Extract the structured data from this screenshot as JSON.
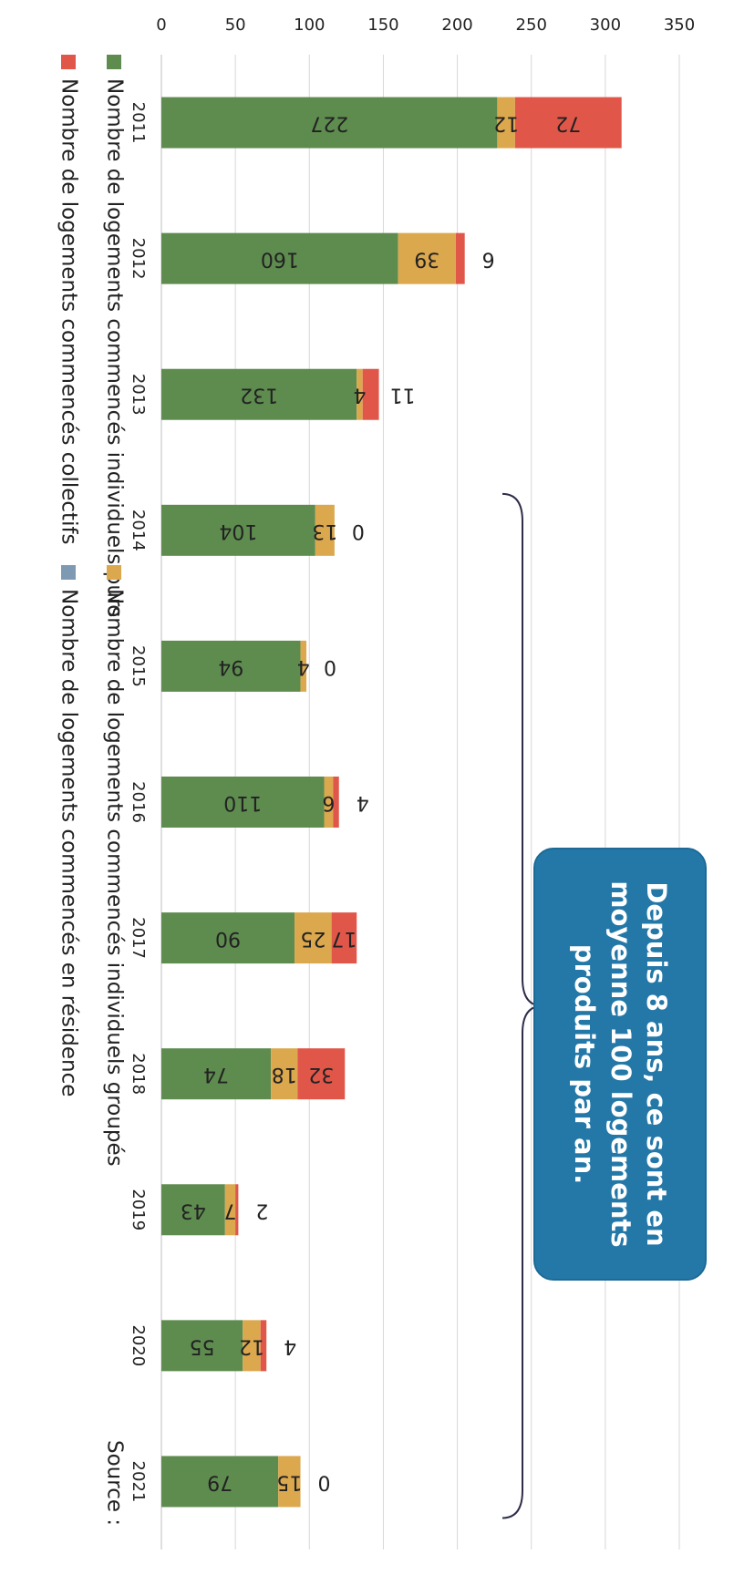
{
  "chart_data": {
    "type": "bar",
    "stacked": true,
    "categories": [
      "2011",
      "2012",
      "2013",
      "2014",
      "2015",
      "2016",
      "2017",
      "2018",
      "2019",
      "2020",
      "2021"
    ],
    "series": [
      {
        "name": "Nombre de logements commencés individuels purs",
        "color": "#5e8c4f",
        "values": [
          227,
          160,
          132,
          104,
          94,
          110,
          90,
          74,
          43,
          55,
          79
        ],
        "labels": [
          "227",
          "160",
          "132",
          "104",
          "94",
          "110",
          "90",
          "74",
          "43",
          "55",
          "79"
        ]
      },
      {
        "name": "Nombre de logements commencés individuels groupés",
        "color": "#dca84e",
        "values": [
          12,
          39,
          4,
          13,
          4,
          6,
          25,
          18,
          7,
          12,
          15
        ],
        "labels": [
          "12",
          "39",
          "4",
          "13",
          "4",
          "6",
          "25",
          "18",
          "7",
          "12",
          "15"
        ]
      },
      {
        "name": "Nombre de logements commencés collectifs",
        "color": "#e0574a",
        "values": [
          72,
          6,
          11,
          0,
          0,
          4,
          17,
          32,
          2,
          4,
          0
        ],
        "labels": [
          "72",
          "6",
          "11",
          "0",
          "0",
          "4",
          "17",
          "32",
          "2",
          "4",
          "0"
        ]
      },
      {
        "name": "Nombre de logements commencés en résidence",
        "color": "#7e9ab2",
        "values": [
          0,
          0,
          0,
          0,
          0,
          0,
          0,
          0,
          0,
          0,
          0
        ],
        "labels": []
      }
    ],
    "yticks": [
      "0",
      "50",
      "100",
      "150",
      "200",
      "250",
      "300",
      "350"
    ],
    "ylim": [
      0,
      350
    ],
    "grid": true,
    "legend_position": "bottom",
    "annotation": "Depuis 8 ans, ce sont en moyenne 100 logements produits par an.",
    "brace_range": [
      "2014",
      "2021"
    ],
    "source_text": "Source :"
  }
}
